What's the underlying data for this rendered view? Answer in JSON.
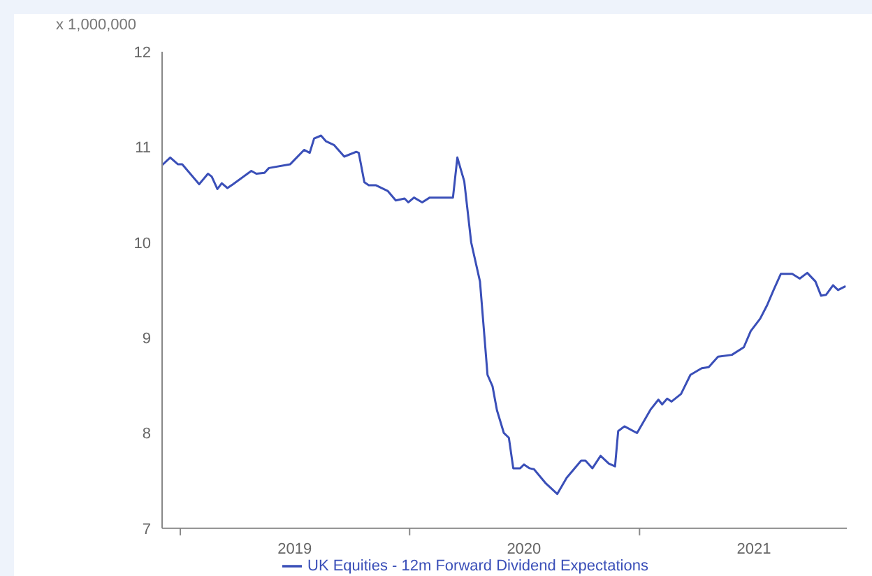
{
  "chart_data": {
    "type": "line",
    "ylabel": "x 1,000,000",
    "x": [
      "2018-12-03",
      "2018-12-16",
      "2018-12-28",
      "2019-01-04",
      "2019-01-31",
      "2019-02-14",
      "2019-02-20",
      "2019-03-01",
      "2019-03-08",
      "2019-03-17",
      "2019-03-26",
      "2019-04-24",
      "2019-05-02",
      "2019-05-15",
      "2019-05-22",
      "2019-06-25",
      "2019-07-17",
      "2019-07-26",
      "2019-08-02",
      "2019-08-13",
      "2019-08-21",
      "2019-09-03",
      "2019-09-19",
      "2019-10-08",
      "2019-10-12",
      "2019-10-21",
      "2019-10-28",
      "2019-11-08",
      "2019-11-27",
      "2019-12-10",
      "2019-12-24",
      "2019-12-30",
      "2020-01-08",
      "2020-01-21",
      "2020-02-02",
      "2020-03-02",
      "2020-03-10",
      "2020-03-17",
      "2020-03-28",
      "2020-04-08",
      "2020-04-22",
      "2020-04-29",
      "2020-05-04",
      "2020-05-12",
      "2020-05-19",
      "2020-05-30",
      "2020-06-07",
      "2020-06-14",
      "2020-06-25",
      "2020-07-01",
      "2020-07-10",
      "2020-07-17",
      "2020-08-05",
      "2020-08-23",
      "2020-09-07",
      "2020-09-30",
      "2020-10-07",
      "2020-10-18",
      "2020-10-31",
      "2020-11-13",
      "2020-11-23",
      "2020-11-28",
      "2020-12-08",
      "2020-12-28",
      "2021-01-19",
      "2021-01-31",
      "2021-02-06",
      "2021-02-14",
      "2021-02-21",
      "2021-03-08",
      "2021-03-23",
      "2021-04-10",
      "2021-04-21",
      "2021-05-06",
      "2021-05-28",
      "2021-06-16",
      "2021-06-27",
      "2021-07-12",
      "2021-07-23",
      "2021-08-03",
      "2021-08-14",
      "2021-09-01",
      "2021-09-13",
      "2021-09-25",
      "2021-10-08",
      "2021-10-17",
      "2021-10-25",
      "2021-11-05",
      "2021-11-13",
      "2021-11-25"
    ],
    "series": [
      {
        "name": "UK Equities - 12m Forward Dividend Expectations",
        "color": "#3a4fb8",
        "values": [
          10.81,
          10.89,
          10.82,
          10.82,
          10.61,
          10.72,
          10.69,
          10.56,
          10.62,
          10.57,
          10.61,
          10.75,
          10.72,
          10.73,
          10.78,
          10.82,
          10.97,
          10.94,
          11.09,
          11.12,
          11.06,
          11.02,
          10.9,
          10.95,
          10.94,
          10.63,
          10.6,
          10.6,
          10.54,
          10.44,
          10.46,
          10.42,
          10.47,
          10.42,
          10.47,
          10.47,
          10.47,
          10.89,
          10.64,
          10.0,
          9.59,
          9.02,
          8.61,
          8.49,
          8.24,
          8.0,
          7.95,
          7.63,
          7.63,
          7.67,
          7.63,
          7.62,
          7.47,
          7.36,
          7.53,
          7.71,
          7.71,
          7.63,
          7.76,
          7.68,
          7.65,
          8.02,
          8.07,
          8.0,
          8.25,
          8.35,
          8.3,
          8.36,
          8.33,
          8.41,
          8.61,
          8.68,
          8.69,
          8.8,
          8.82,
          8.9,
          9.07,
          9.2,
          9.34,
          9.51,
          9.67,
          9.67,
          9.62,
          9.68,
          9.59,
          9.44,
          9.45,
          9.55,
          9.5,
          9.54
        ]
      }
    ],
    "xlim": [
      "2018-12-03",
      "2021-11-27"
    ],
    "xticks": [
      {
        "value": "2019-01-01",
        "label": null
      },
      {
        "value": "2019-07-02",
        "label": "2019"
      },
      {
        "value": "2020-01-01",
        "label": null
      },
      {
        "value": "2020-07-01",
        "label": "2020"
      },
      {
        "value": "2021-01-01",
        "label": null
      },
      {
        "value": "2021-07-02",
        "label": "2021"
      }
    ],
    "ylim": [
      7,
      12
    ],
    "yticks": [
      7,
      8,
      9,
      10,
      11,
      12
    ],
    "grid": false,
    "legend": "bottom",
    "marker": "none",
    "line_style": "solid"
  }
}
